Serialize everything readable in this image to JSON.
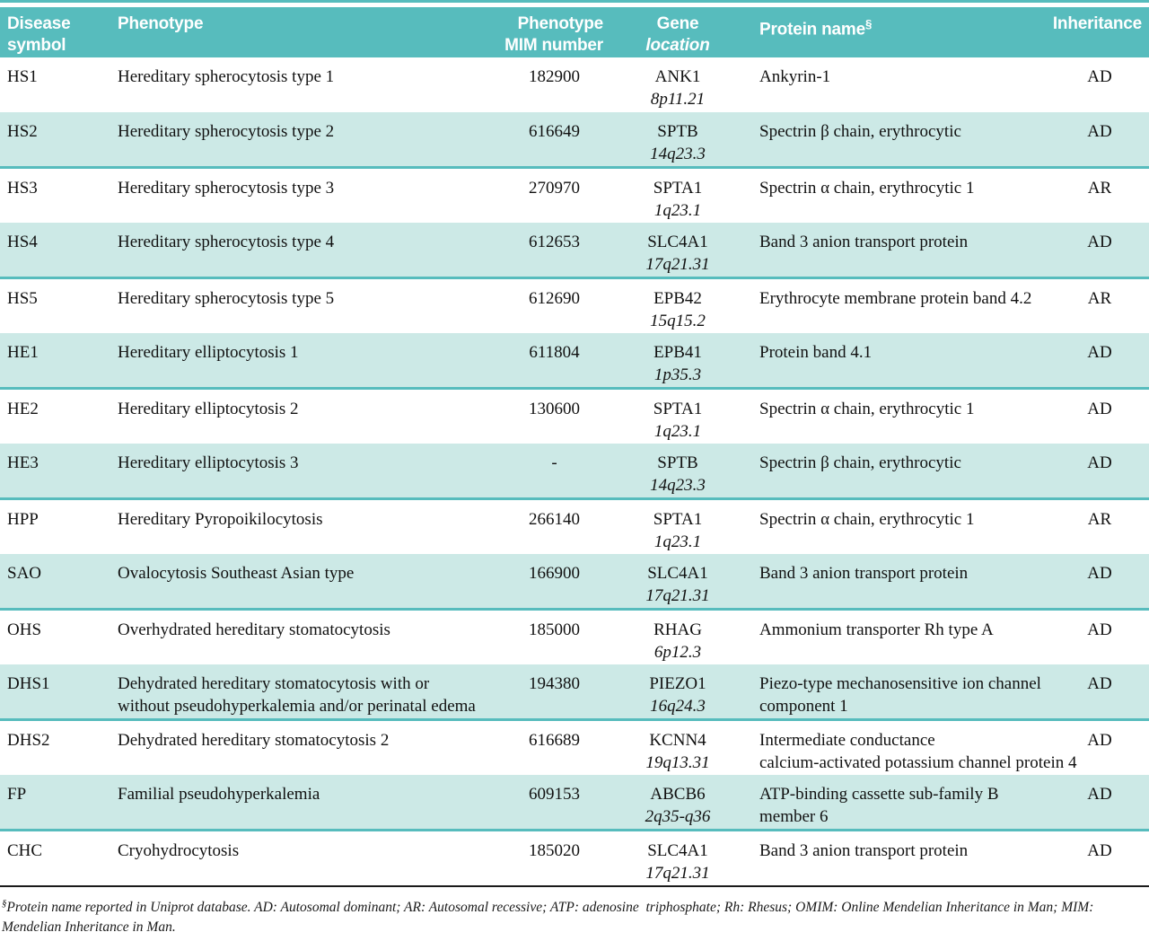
{
  "colors": {
    "header_bg": "#57bcbd",
    "shaded_row_bg": "#cce9e6",
    "rule_teal": "#57bcbd",
    "footnote_rule": "#1a1a1a",
    "header_text": "#ffffff",
    "body_text": "#111111"
  },
  "table": {
    "columns": {
      "symbol": {
        "label": "Disease symbol"
      },
      "phenotype": {
        "label": "Phenotype"
      },
      "mim": {
        "label": "Phenotype MIM number"
      },
      "gene": {
        "label": "Gene",
        "sublabel": "location"
      },
      "protein": {
        "label": "Protein name",
        "sup": "§"
      },
      "inheritance": {
        "label": "Inheritance"
      }
    },
    "rows": [
      {
        "symbol": "HS1",
        "phenotype": [
          "Hereditary spherocytosis type 1"
        ],
        "mim": "182900",
        "gene": "ANK1",
        "location": "8p11.21",
        "protein": [
          "Ankyrin-1"
        ],
        "inheritance": "AD",
        "shaded": false
      },
      {
        "symbol": "HS2",
        "phenotype": [
          "Hereditary spherocytosis type 2"
        ],
        "mim": "616649",
        "gene": "SPTB",
        "location": "14q23.3",
        "protein": [
          "Spectrin β chain, erythrocytic"
        ],
        "inheritance": "AD",
        "shaded": true
      },
      {
        "symbol": "HS3",
        "phenotype": [
          "Hereditary spherocytosis type 3"
        ],
        "mim": "270970",
        "gene": "SPTA1",
        "location": "1q23.1",
        "protein": [
          "Spectrin α chain, erythrocytic 1"
        ],
        "inheritance": "AR",
        "shaded": false
      },
      {
        "symbol": "HS4",
        "phenotype": [
          "Hereditary spherocytosis type 4"
        ],
        "mim": "612653",
        "gene": "SLC4A1",
        "location": "17q21.31",
        "protein": [
          "Band 3 anion transport protein"
        ],
        "inheritance": "AD",
        "shaded": true
      },
      {
        "symbol": "HS5",
        "phenotype": [
          "Hereditary spherocytosis type 5"
        ],
        "mim": "612690",
        "gene": "EPB42",
        "location": "15q15.2",
        "protein": [
          "Erythrocyte membrane protein band 4.2"
        ],
        "inheritance": "AR",
        "shaded": false
      },
      {
        "symbol": "HE1",
        "phenotype": [
          "Hereditary elliptocytosis 1"
        ],
        "mim": "611804",
        "gene": "EPB41",
        "location": "1p35.3",
        "protein": [
          "Protein band 4.1"
        ],
        "inheritance": "AD",
        "shaded": true
      },
      {
        "symbol": "HE2",
        "phenotype": [
          "Hereditary elliptocytosis 2"
        ],
        "mim": "130600",
        "gene": "SPTA1",
        "location": "1q23.1",
        "protein": [
          "Spectrin α chain, erythrocytic 1"
        ],
        "inheritance": "AD",
        "shaded": false
      },
      {
        "symbol": "HE3",
        "phenotype": [
          "Hereditary elliptocytosis 3"
        ],
        "mim": "-",
        "gene": "SPTB",
        "location": "14q23.3",
        "protein": [
          "Spectrin β chain, erythrocytic"
        ],
        "inheritance": "AD",
        "shaded": true
      },
      {
        "symbol": "HPP",
        "phenotype": [
          "Hereditary Pyropoikilocytosis"
        ],
        "mim": "266140",
        "gene": "SPTA1",
        "location": "1q23.1",
        "protein": [
          "Spectrin α chain, erythrocytic 1"
        ],
        "inheritance": "AR",
        "shaded": false
      },
      {
        "symbol": "SAO",
        "phenotype": [
          "Ovalocytosis Southeast Asian type"
        ],
        "mim": "166900",
        "gene": "SLC4A1",
        "location": "17q21.31",
        "protein": [
          "Band 3 anion transport protein"
        ],
        "inheritance": "AD",
        "shaded": true
      },
      {
        "symbol": "OHS",
        "phenotype": [
          "Overhydrated hereditary stomatocytosis"
        ],
        "mim": "185000",
        "gene": "RHAG",
        "location": "6p12.3",
        "protein": [
          "Ammonium transporter Rh type A"
        ],
        "inheritance": "AD",
        "shaded": false
      },
      {
        "symbol": "DHS1",
        "phenotype": [
          "Dehydrated hereditary stomatocytosis with or",
          "without pseudohyperkalemia and/or perinatal edema"
        ],
        "mim": "194380",
        "gene": "PIEZO1",
        "location": "16q24.3",
        "protein": [
          "Piezo-type mechanosensitive ion channel",
          "component 1"
        ],
        "inheritance": "AD",
        "shaded": true
      },
      {
        "symbol": "DHS2",
        "phenotype": [
          "Dehydrated hereditary stomatocytosis 2"
        ],
        "mim": "616689",
        "gene": "KCNN4",
        "location": "19q13.31",
        "protein": [
          "Intermediate conductance",
          "calcium-activated potassium channel protein 4"
        ],
        "inheritance": "AD",
        "shaded": false
      },
      {
        "symbol": "FP",
        "phenotype": [
          "Familial pseudohyperkalemia"
        ],
        "mim": "609153",
        "gene": "ABCB6",
        "location": "2q35-q36",
        "protein": [
          "ATP-binding cassette sub-family B",
          "member 6"
        ],
        "inheritance": "AD",
        "shaded": true
      },
      {
        "symbol": "CHC",
        "phenotype": [
          "Cryohydrocytosis"
        ],
        "mim": "185020",
        "gene": "SLC4A1",
        "location": "17q21.31",
        "protein": [
          "Band 3 anion transport protein"
        ],
        "inheritance": "AD",
        "shaded": false
      }
    ]
  },
  "footnote": {
    "sup": "§",
    "text": "Protein name reported in Uniprot database. AD: Autosomal dominant; AR: Autosomal recessive; ATP: adenosine  triphosphate; Rh: Rhesus; OMIM: Online Mendelian Inheritance in Man; MIM: Mendelian Inheritance in Man."
  }
}
